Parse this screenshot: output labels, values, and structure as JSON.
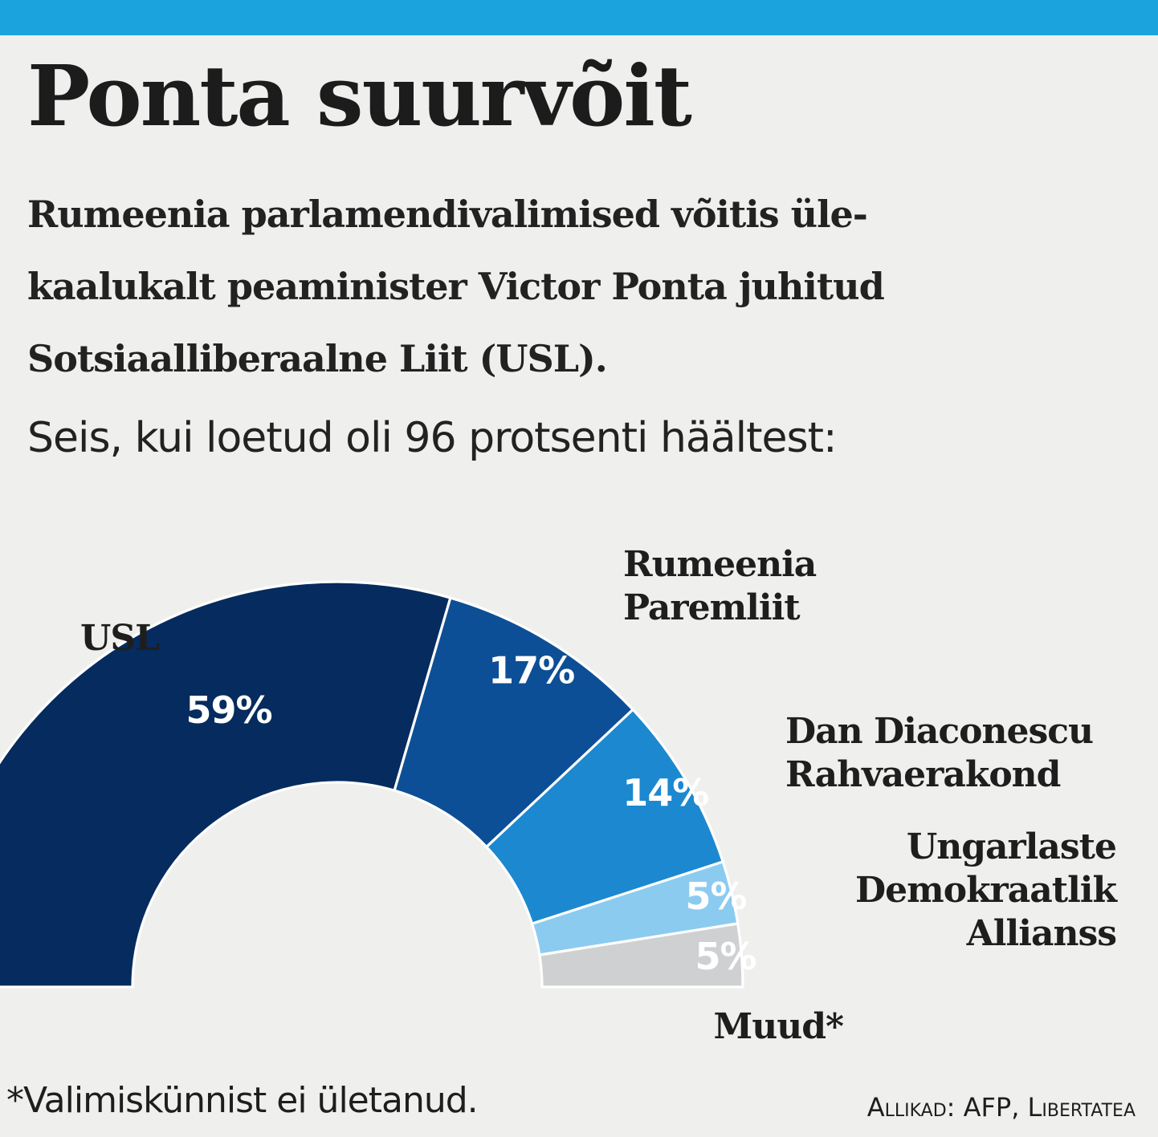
{
  "header": {
    "title": "Ponta suurvõit",
    "subtitle_lines": [
      "Rumeenia parlamendivalimised võitis üle-",
      "kaalukalt peaminister Victor Ponta juhitud",
      "Sotsiaalliberaalne Liit (USL)."
    ],
    "status": "Seis, kui loetud oli 96 protsenti häältest:"
  },
  "chart_data": {
    "type": "pie",
    "subtype": "half-donut",
    "series": [
      {
        "name": "USL",
        "label_lines": [
          "USL"
        ],
        "value": 59,
        "value_label": "59%",
        "color": "#062b5e",
        "text_color": "#ffffff"
      },
      {
        "name": "Rumeenia Paremliit",
        "label_lines": [
          "Rumeenia",
          "Paremliit"
        ],
        "value": 17,
        "value_label": "17%",
        "color": "#0c4f96",
        "text_color": "#ffffff"
      },
      {
        "name": "Dan Diaconescu Rahvaerakond",
        "label_lines": [
          "Dan Diaconescu",
          "Rahvaerakond"
        ],
        "value": 14,
        "value_label": "14%",
        "color": "#1c88d0",
        "text_color": "#ffffff"
      },
      {
        "name": "Ungarlaste Demokraatlik Allianss",
        "label_lines": [
          "Ungarlaste",
          "Demokraatlik",
          "Allianss"
        ],
        "value": 5,
        "value_label": "5%",
        "color": "#8ccbf0",
        "text_color": "#ffffff"
      },
      {
        "name": "Muud*",
        "label_lines": [
          "Muud*"
        ],
        "value": 5,
        "value_label": "5%",
        "color": "#cfd0d2",
        "text_color": "#ffffff"
      }
    ]
  },
  "footer": {
    "footnote": "*Valimiskünnist ei ületanud.",
    "source": "Allikad: AFP, Libertatea"
  }
}
